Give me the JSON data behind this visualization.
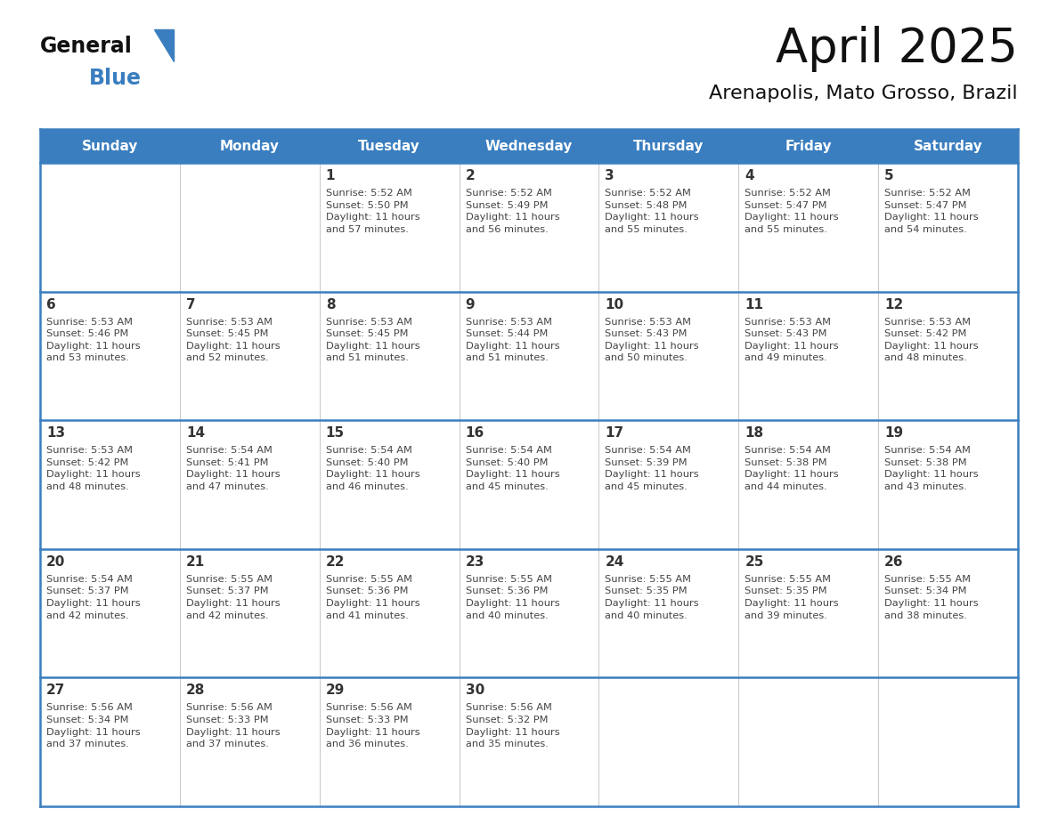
{
  "title": "April 2025",
  "subtitle": "Arenapolis, Mato Grosso, Brazil",
  "header_color": "#3a7ebf",
  "header_text_color": "#ffffff",
  "weekdays": [
    "Sunday",
    "Monday",
    "Tuesday",
    "Wednesday",
    "Thursday",
    "Friday",
    "Saturday"
  ],
  "background_color": "#ffffff",
  "cell_bg_color": "#ffffff",
  "row_sep_color": "#3a7ebf",
  "col_sep_color": "#bbbbbb",
  "text_color": "#444444",
  "day_num_color": "#333333",
  "days": [
    {
      "day": null,
      "info": ""
    },
    {
      "day": null,
      "info": ""
    },
    {
      "day": 1,
      "info": "Sunrise: 5:52 AM\nSunset: 5:50 PM\nDaylight: 11 hours\nand 57 minutes."
    },
    {
      "day": 2,
      "info": "Sunrise: 5:52 AM\nSunset: 5:49 PM\nDaylight: 11 hours\nand 56 minutes."
    },
    {
      "day": 3,
      "info": "Sunrise: 5:52 AM\nSunset: 5:48 PM\nDaylight: 11 hours\nand 55 minutes."
    },
    {
      "day": 4,
      "info": "Sunrise: 5:52 AM\nSunset: 5:47 PM\nDaylight: 11 hours\nand 55 minutes."
    },
    {
      "day": 5,
      "info": "Sunrise: 5:52 AM\nSunset: 5:47 PM\nDaylight: 11 hours\nand 54 minutes."
    },
    {
      "day": 6,
      "info": "Sunrise: 5:53 AM\nSunset: 5:46 PM\nDaylight: 11 hours\nand 53 minutes."
    },
    {
      "day": 7,
      "info": "Sunrise: 5:53 AM\nSunset: 5:45 PM\nDaylight: 11 hours\nand 52 minutes."
    },
    {
      "day": 8,
      "info": "Sunrise: 5:53 AM\nSunset: 5:45 PM\nDaylight: 11 hours\nand 51 minutes."
    },
    {
      "day": 9,
      "info": "Sunrise: 5:53 AM\nSunset: 5:44 PM\nDaylight: 11 hours\nand 51 minutes."
    },
    {
      "day": 10,
      "info": "Sunrise: 5:53 AM\nSunset: 5:43 PM\nDaylight: 11 hours\nand 50 minutes."
    },
    {
      "day": 11,
      "info": "Sunrise: 5:53 AM\nSunset: 5:43 PM\nDaylight: 11 hours\nand 49 minutes."
    },
    {
      "day": 12,
      "info": "Sunrise: 5:53 AM\nSunset: 5:42 PM\nDaylight: 11 hours\nand 48 minutes."
    },
    {
      "day": 13,
      "info": "Sunrise: 5:53 AM\nSunset: 5:42 PM\nDaylight: 11 hours\nand 48 minutes."
    },
    {
      "day": 14,
      "info": "Sunrise: 5:54 AM\nSunset: 5:41 PM\nDaylight: 11 hours\nand 47 minutes."
    },
    {
      "day": 15,
      "info": "Sunrise: 5:54 AM\nSunset: 5:40 PM\nDaylight: 11 hours\nand 46 minutes."
    },
    {
      "day": 16,
      "info": "Sunrise: 5:54 AM\nSunset: 5:40 PM\nDaylight: 11 hours\nand 45 minutes."
    },
    {
      "day": 17,
      "info": "Sunrise: 5:54 AM\nSunset: 5:39 PM\nDaylight: 11 hours\nand 45 minutes."
    },
    {
      "day": 18,
      "info": "Sunrise: 5:54 AM\nSunset: 5:38 PM\nDaylight: 11 hours\nand 44 minutes."
    },
    {
      "day": 19,
      "info": "Sunrise: 5:54 AM\nSunset: 5:38 PM\nDaylight: 11 hours\nand 43 minutes."
    },
    {
      "day": 20,
      "info": "Sunrise: 5:54 AM\nSunset: 5:37 PM\nDaylight: 11 hours\nand 42 minutes."
    },
    {
      "day": 21,
      "info": "Sunrise: 5:55 AM\nSunset: 5:37 PM\nDaylight: 11 hours\nand 42 minutes."
    },
    {
      "day": 22,
      "info": "Sunrise: 5:55 AM\nSunset: 5:36 PM\nDaylight: 11 hours\nand 41 minutes."
    },
    {
      "day": 23,
      "info": "Sunrise: 5:55 AM\nSunset: 5:36 PM\nDaylight: 11 hours\nand 40 minutes."
    },
    {
      "day": 24,
      "info": "Sunrise: 5:55 AM\nSunset: 5:35 PM\nDaylight: 11 hours\nand 40 minutes."
    },
    {
      "day": 25,
      "info": "Sunrise: 5:55 AM\nSunset: 5:35 PM\nDaylight: 11 hours\nand 39 minutes."
    },
    {
      "day": 26,
      "info": "Sunrise: 5:55 AM\nSunset: 5:34 PM\nDaylight: 11 hours\nand 38 minutes."
    },
    {
      "day": 27,
      "info": "Sunrise: 5:56 AM\nSunset: 5:34 PM\nDaylight: 11 hours\nand 37 minutes."
    },
    {
      "day": 28,
      "info": "Sunrise: 5:56 AM\nSunset: 5:33 PM\nDaylight: 11 hours\nand 37 minutes."
    },
    {
      "day": 29,
      "info": "Sunrise: 5:56 AM\nSunset: 5:33 PM\nDaylight: 11 hours\nand 36 minutes."
    },
    {
      "day": 30,
      "info": "Sunrise: 5:56 AM\nSunset: 5:32 PM\nDaylight: 11 hours\nand 35 minutes."
    },
    {
      "day": null,
      "info": ""
    },
    {
      "day": null,
      "info": ""
    },
    {
      "day": null,
      "info": ""
    }
  ],
  "logo_general_color": "#111111",
  "logo_blue_color": "#3a7ebf",
  "title_fontsize": 38,
  "subtitle_fontsize": 16
}
